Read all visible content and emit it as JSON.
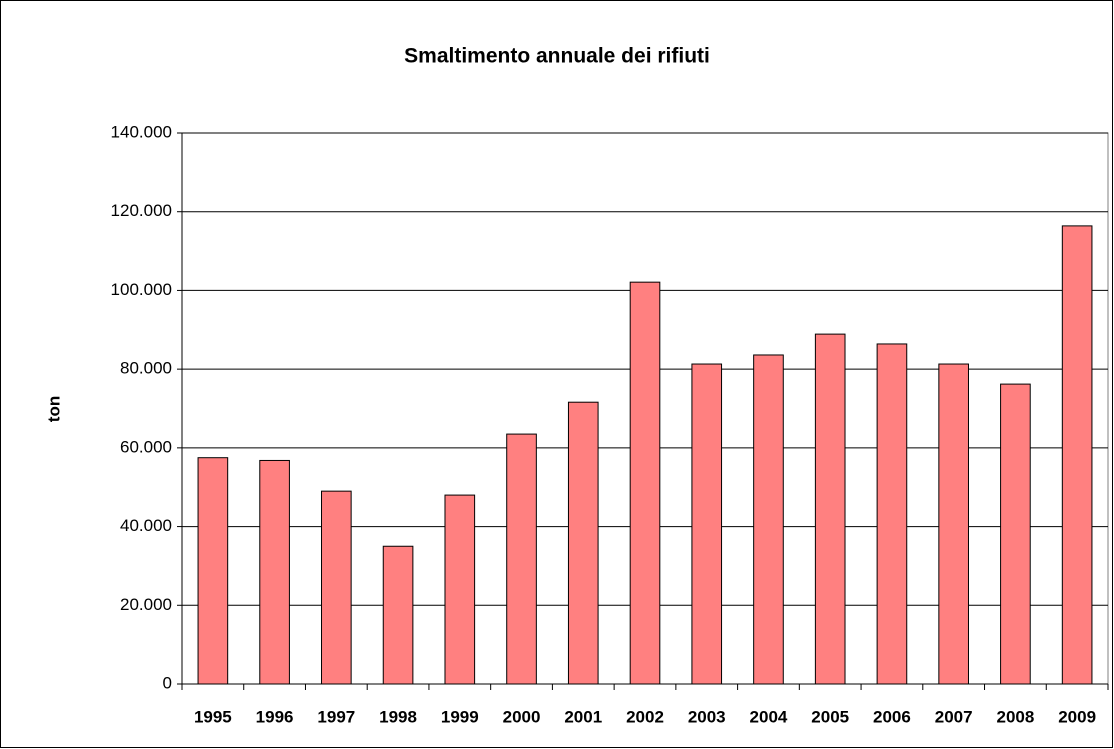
{
  "chart_data": {
    "type": "bar",
    "title": "Smaltimento annuale dei rifiuti",
    "ylabel": "ton",
    "categories": [
      "1995",
      "1996",
      "1997",
      "1998",
      "1999",
      "2000",
      "2001",
      "2002",
      "2003",
      "2004",
      "2005",
      "2006",
      "2007",
      "2008",
      "2009"
    ],
    "values": [
      57500,
      56800,
      49000,
      35000,
      48000,
      63500,
      71600,
      102100,
      81300,
      83600,
      88900,
      86400,
      81300,
      76200,
      116400
    ],
    "color": "#ff8080",
    "ylim": [
      0,
      140000
    ],
    "yticks": [
      0,
      {
        "value": 20000,
        "label": "20.000"
      },
      {
        "value": 40000,
        "label": "40.000"
      },
      {
        "value": 60000,
        "label": "60.000"
      },
      {
        "value": 80000,
        "label": "80.000"
      },
      {
        "value": 100000,
        "label": "100.000"
      },
      {
        "value": 120000,
        "label": "120.000"
      },
      {
        "value": 140000,
        "label": "140.000"
      }
    ],
    "grid": true
  }
}
